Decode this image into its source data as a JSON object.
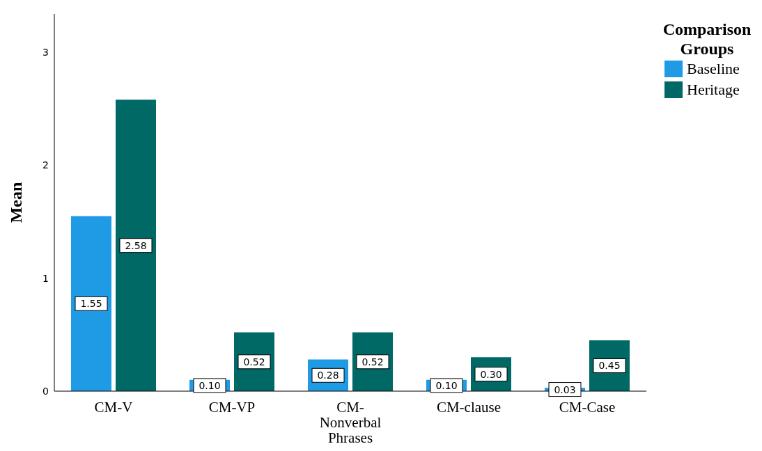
{
  "chart_data": {
    "type": "bar",
    "categories": [
      "CM-V",
      "CM-VP",
      "CM-Nonverbal Phrases",
      "CM-clause",
      "CM-Case"
    ],
    "series": [
      {
        "name": "Baseline",
        "color": "#1f9be6",
        "values": [
          1.55,
          0.1,
          0.28,
          0.1,
          0.03
        ],
        "value_labels": [
          "1.55",
          "0.10",
          "0.28",
          "0.10",
          "0.03"
        ]
      },
      {
        "name": "Heritage",
        "color": "#006865",
        "values": [
          2.58,
          0.52,
          0.52,
          0.3,
          0.45
        ],
        "value_labels": [
          "2.58",
          "0.52",
          "0.52",
          "0.30",
          "0.45"
        ]
      }
    ],
    "ylabel": "Mean",
    "legend_title": "Comparison Groups",
    "ylim": [
      0,
      3.34
    ],
    "yticks": [
      0,
      1,
      2,
      3
    ],
    "grid": false,
    "legend": "top right"
  }
}
